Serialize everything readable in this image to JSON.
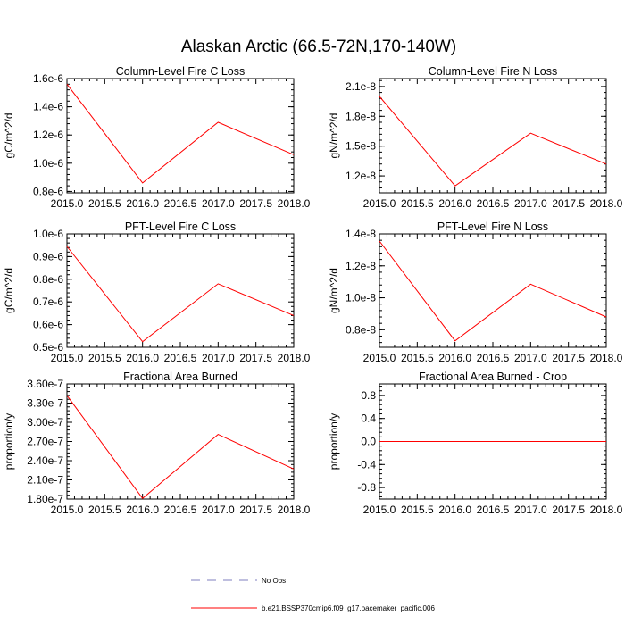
{
  "figure": {
    "title": "Alaskan Arctic (66.5-72N,170-140W)",
    "legend": [
      {
        "label": "No Obs",
        "color": "#7f7fbf",
        "dash": true
      },
      {
        "label": "b.e21.BSSP370cmip6.f09_g17.pacemaker_pacific.006",
        "color": "#ff0000",
        "dash": false
      }
    ]
  },
  "chart_data": [
    {
      "type": "line",
      "title": "Column-Level Fire C Loss",
      "ylabel": "gC/m^2/d",
      "xlim": [
        2015.0,
        2018.0
      ],
      "ylim": [
        7.9e-07,
        1.6e-06
      ],
      "x_ticks": [
        "2015.0",
        "2015.5",
        "2016.0",
        "2016.5",
        "2017.0",
        "2017.5",
        "2018.0"
      ],
      "y_ticks": [
        {
          "v": 8e-07,
          "label": "0.8e-6"
        },
        {
          "v": 1e-06,
          "label": "1.0e-6"
        },
        {
          "v": 1.2e-06,
          "label": "1.2e-6"
        },
        {
          "v": 1.4e-06,
          "label": "1.4e-6"
        },
        {
          "v": 1.6e-06,
          "label": "1.6e-6"
        }
      ],
      "series": [
        {
          "x": [
            2015,
            2016,
            2017,
            2018
          ],
          "y": [
            1.56e-06,
            8.6e-07,
            1.29e-06,
            1.06e-06
          ],
          "color": "#ff0000"
        }
      ]
    },
    {
      "type": "line",
      "title": "Column-Level Fire N Loss",
      "ylabel": "gN/m^2/d",
      "xlim": [
        2015.0,
        2018.0
      ],
      "ylim": [
        1.03e-08,
        2.18e-08
      ],
      "x_ticks": [
        "2015.0",
        "2015.5",
        "2016.0",
        "2016.5",
        "2017.0",
        "2017.5",
        "2018.0"
      ],
      "y_ticks": [
        {
          "v": 1.2e-08,
          "label": "1.2e-8"
        },
        {
          "v": 1.5e-08,
          "label": "1.5e-8"
        },
        {
          "v": 1.8e-08,
          "label": "1.8e-8"
        },
        {
          "v": 2.1e-08,
          "label": "2.1e-8"
        }
      ],
      "series": [
        {
          "x": [
            2015,
            2016,
            2017,
            2018
          ],
          "y": [
            2e-08,
            1.1e-08,
            1.63e-08,
            1.32e-08
          ],
          "color": "#ff0000"
        }
      ]
    },
    {
      "type": "line",
      "title": "PFT-Level Fire C Loss",
      "ylabel": "gC/m^2/d",
      "xlim": [
        2015.0,
        2018.0
      ],
      "ylim": [
        5e-07,
        1e-06
      ],
      "x_ticks": [
        "2015.0",
        "2015.5",
        "2016.0",
        "2016.5",
        "2017.0",
        "2017.5",
        "2018.0"
      ],
      "y_ticks": [
        {
          "v": 5e-07,
          "label": "0.5e-6"
        },
        {
          "v": 6e-07,
          "label": "0.6e-6"
        },
        {
          "v": 7e-07,
          "label": "0.7e-6"
        },
        {
          "v": 8e-07,
          "label": "0.8e-6"
        },
        {
          "v": 9e-07,
          "label": "0.9e-6"
        },
        {
          "v": 1e-06,
          "label": "1.0e-6"
        }
      ],
      "series": [
        {
          "x": [
            2015,
            2016,
            2017,
            2018
          ],
          "y": [
            9.45e-07,
            5.25e-07,
            7.8e-07,
            6.4e-07
          ],
          "color": "#ff0000"
        }
      ]
    },
    {
      "type": "line",
      "title": "PFT-Level Fire N Loss",
      "ylabel": "gN/m^2/d",
      "xlim": [
        2015.0,
        2018.0
      ],
      "ylim": [
        6.9e-09,
        1.4e-08
      ],
      "x_ticks": [
        "2015.0",
        "2015.5",
        "2016.0",
        "2016.5",
        "2017.0",
        "2017.5",
        "2018.0"
      ],
      "y_ticks": [
        {
          "v": 8e-09,
          "label": "0.8e-8"
        },
        {
          "v": 1e-08,
          "label": "1.0e-8"
        },
        {
          "v": 1.2e-08,
          "label": "1.2e-8"
        },
        {
          "v": 1.4e-08,
          "label": "1.4e-8"
        }
      ],
      "series": [
        {
          "x": [
            2015,
            2016,
            2017,
            2018
          ],
          "y": [
            1.355e-08,
            7.3e-09,
            1.085e-08,
            8.8e-09
          ],
          "color": "#ff0000"
        }
      ]
    },
    {
      "type": "line",
      "title": "Fractional Area Burned",
      "ylabel": "proportion/y",
      "xlim": [
        2015.0,
        2018.0
      ],
      "ylim": [
        1.8e-07,
        3.6e-07
      ],
      "x_ticks": [
        "2015.0",
        "2015.5",
        "2016.0",
        "2016.5",
        "2017.0",
        "2017.5",
        "2018.0"
      ],
      "y_ticks": [
        {
          "v": 1.8e-07,
          "label": "1.80e-7"
        },
        {
          "v": 2.1e-07,
          "label": "2.10e-7"
        },
        {
          "v": 2.4e-07,
          "label": "2.40e-7"
        },
        {
          "v": 2.7e-07,
          "label": "2.70e-7"
        },
        {
          "v": 3e-07,
          "label": "3.00e-7"
        },
        {
          "v": 3.3e-07,
          "label": "3.30e-7"
        },
        {
          "v": 3.6e-07,
          "label": "3.60e-7"
        }
      ],
      "series": [
        {
          "x": [
            2015,
            2016,
            2017,
            2018
          ],
          "y": [
            3.42e-07,
            1.81e-07,
            2.81e-07,
            2.27e-07
          ],
          "color": "#ff0000"
        }
      ]
    },
    {
      "type": "line",
      "title": "Fractional Area Burned - Crop",
      "ylabel": "proportion/y",
      "xlim": [
        2015.0,
        2018.0
      ],
      "ylim": [
        -1.0,
        1.0
      ],
      "x_ticks": [
        "2015.0",
        "2015.5",
        "2016.0",
        "2016.5",
        "2017.0",
        "2017.5",
        "2018.0"
      ],
      "y_ticks": [
        {
          "v": -0.8,
          "label": "-0.8"
        },
        {
          "v": -0.4,
          "label": "-0.4"
        },
        {
          "v": 0.0,
          "label": "0.0"
        },
        {
          "v": 0.4,
          "label": "0.4"
        },
        {
          "v": 0.8,
          "label": "0.8"
        }
      ],
      "series": [
        {
          "x": [
            2015,
            2016,
            2017,
            2018
          ],
          "y": [
            0,
            0,
            0,
            0
          ],
          "color": "#ff0000"
        }
      ]
    }
  ]
}
